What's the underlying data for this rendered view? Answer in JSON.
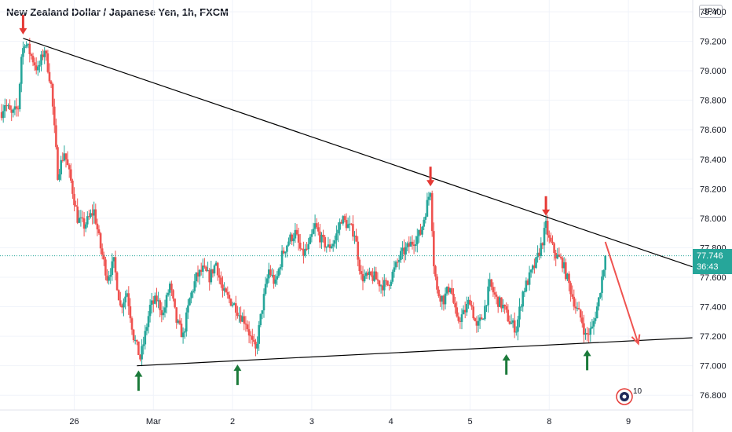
{
  "header": {
    "title": "New Zealand Dollar / Japanese Yen, 1h, FXCM",
    "currency": "JPY"
  },
  "price_badge": {
    "price": "77.746",
    "countdown": "36:43",
    "color": "#26a69a"
  },
  "logo": {
    "count": "10"
  },
  "colors": {
    "up": "#26a69a",
    "down": "#ef5350",
    "arrow_up": "#1b7a3a",
    "arrow_down": "#e53935",
    "trendline": "#000000"
  },
  "chart_data": {
    "type": "candlestick",
    "y_ticks": [
      "79.400",
      "79.200",
      "79.000",
      "78.800",
      "78.600",
      "78.400",
      "78.200",
      "78.000",
      "77.800",
      "77.600",
      "77.400",
      "77.200",
      "77.000",
      "76.800"
    ],
    "x_ticks": [
      {
        "label": "26",
        "hour": 0
      },
      {
        "label": "Mar",
        "hour": 24
      },
      {
        "label": "2",
        "hour": 48
      },
      {
        "label": "3",
        "hour": 72
      },
      {
        "label": "4",
        "hour": 96
      },
      {
        "label": "5",
        "hour": 120
      },
      {
        "label": "8",
        "hour": 144
      },
      {
        "label": "9",
        "hour": 168
      }
    ],
    "ylim": [
      76.7,
      79.48
    ],
    "xlim_hours": [
      -22.5,
      187.5
    ],
    "last_price": 77.746,
    "anchors": [
      [
        -22,
        78.72
      ],
      [
        -21,
        78.78
      ],
      [
        -19,
        78.7
      ],
      [
        -17,
        78.75
      ],
      [
        -16,
        79.1
      ],
      [
        -15,
        79.2
      ],
      [
        -13,
        79.1
      ],
      [
        -11,
        79.0
      ],
      [
        -9,
        79.15
      ],
      [
        -7,
        78.9
      ],
      [
        -5,
        78.3
      ],
      [
        -3,
        78.45
      ],
      [
        -1,
        78.25
      ],
      [
        1,
        78.0
      ],
      [
        3,
        77.95
      ],
      [
        6,
        78.05
      ],
      [
        8,
        77.8
      ],
      [
        10,
        77.6
      ],
      [
        12,
        77.7
      ],
      [
        14,
        77.4
      ],
      [
        16,
        77.5
      ],
      [
        18,
        77.2
      ],
      [
        20,
        77.05
      ],
      [
        21,
        77.15
      ],
      [
        23,
        77.4
      ],
      [
        25,
        77.45
      ],
      [
        27,
        77.35
      ],
      [
        29,
        77.55
      ],
      [
        31,
        77.3
      ],
      [
        33,
        77.2
      ],
      [
        35,
        77.45
      ],
      [
        37,
        77.6
      ],
      [
        39,
        77.65
      ],
      [
        41,
        77.6
      ],
      [
        43,
        77.7
      ],
      [
        45,
        77.5
      ],
      [
        47,
        77.45
      ],
      [
        49,
        77.4
      ],
      [
        50,
        77.35
      ],
      [
        52,
        77.3
      ],
      [
        54,
        77.15
      ],
      [
        55,
        77.1
      ],
      [
        57,
        77.4
      ],
      [
        59,
        77.65
      ],
      [
        61,
        77.55
      ],
      [
        63,
        77.75
      ],
      [
        65,
        77.85
      ],
      [
        67,
        77.9
      ],
      [
        69,
        77.75
      ],
      [
        71,
        77.8
      ],
      [
        73,
        77.95
      ],
      [
        75,
        77.85
      ],
      [
        77,
        77.8
      ],
      [
        79,
        77.85
      ],
      [
        81,
        78.0
      ],
      [
        83,
        77.95
      ],
      [
        85,
        77.9
      ],
      [
        87,
        77.6
      ],
      [
        89,
        77.6
      ],
      [
        91,
        77.6
      ],
      [
        93,
        77.55
      ],
      [
        95,
        77.55
      ],
      [
        97,
        77.65
      ],
      [
        99,
        77.75
      ],
      [
        101,
        77.8
      ],
      [
        103,
        77.85
      ],
      [
        105,
        77.9
      ],
      [
        107,
        78.1
      ],
      [
        108,
        78.2
      ],
      [
        109,
        77.7
      ],
      [
        110,
        77.5
      ],
      [
        112,
        77.45
      ],
      [
        114,
        77.55
      ],
      [
        116,
        77.3
      ],
      [
        118,
        77.35
      ],
      [
        120,
        77.45
      ],
      [
        122,
        77.25
      ],
      [
        124,
        77.35
      ],
      [
        126,
        77.55
      ],
      [
        128,
        77.45
      ],
      [
        130,
        77.4
      ],
      [
        132,
        77.3
      ],
      [
        134,
        77.25
      ],
      [
        136,
        77.5
      ],
      [
        138,
        77.6
      ],
      [
        140,
        77.7
      ],
      [
        142,
        77.85
      ],
      [
        143,
        77.95
      ],
      [
        144,
        77.85
      ],
      [
        146,
        77.75
      ],
      [
        148,
        77.7
      ],
      [
        150,
        77.55
      ],
      [
        152,
        77.4
      ],
      [
        154,
        77.3
      ],
      [
        155,
        77.2
      ],
      [
        157,
        77.25
      ],
      [
        159,
        77.45
      ],
      [
        160,
        77.6
      ],
      [
        161,
        77.746
      ]
    ],
    "trendlines": [
      {
        "name": "resistance",
        "from": [
          -15.5,
          79.22
        ],
        "to": [
          187.5,
          77.67
        ]
      },
      {
        "name": "support",
        "from": [
          19,
          77.0
        ],
        "to": [
          187.5,
          77.19
        ]
      }
    ],
    "projection": {
      "from": [
        161,
        77.84
      ],
      "to": [
        171,
        77.15
      ]
    },
    "markers": {
      "down": [
        [
          -15.5,
          79.22
        ],
        [
          108,
          78.19
        ],
        [
          143,
          77.99
        ]
      ],
      "up": [
        [
          19.5,
          77.0
        ],
        [
          49.5,
          77.04
        ],
        [
          131,
          77.11
        ],
        [
          155.5,
          77.14
        ]
      ]
    }
  }
}
